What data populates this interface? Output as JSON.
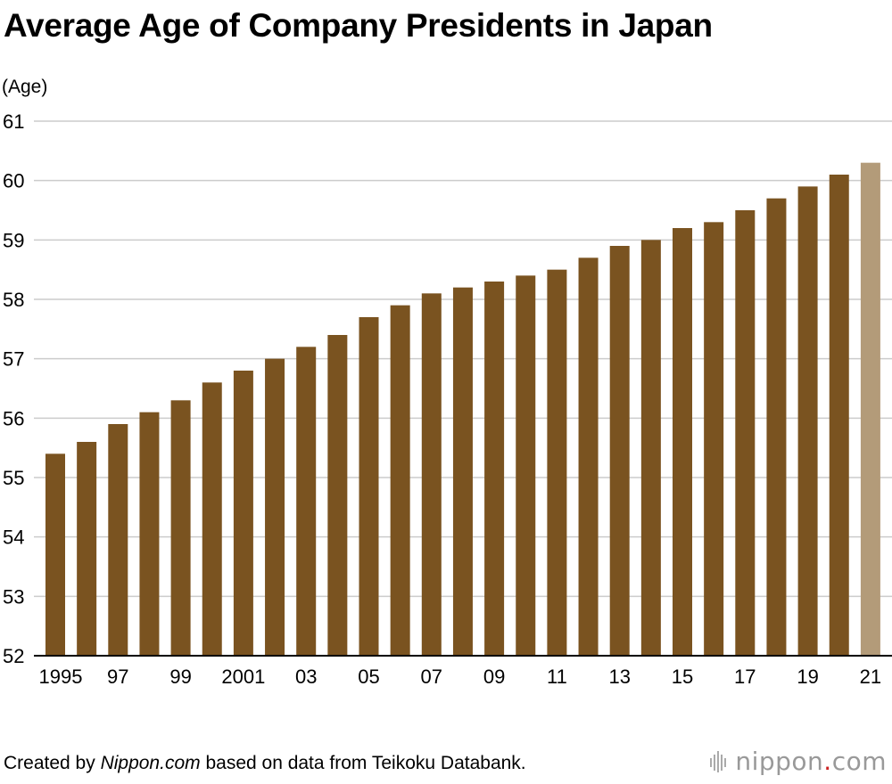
{
  "title": "Average Age of Company Presidents in Japan",
  "footer": {
    "prefix": "Created by ",
    "site": "Nippon.com",
    "suffix": " based on data from Teikoku Databank."
  },
  "logo": {
    "word1": "nippon",
    "dot": ".",
    "word2": "com",
    "icon": "bars-logo-icon"
  },
  "colors": {
    "bar": "#7a5320",
    "bar_highlight": "#b39b79",
    "grid": "#cccccc",
    "axis": "#000000"
  },
  "chart_data": {
    "type": "bar",
    "title": "Average Age of Company Presidents in Japan",
    "ylabel": "(Age)",
    "xlabel": "",
    "ylim": [
      52,
      61
    ],
    "yticks": [
      52,
      53,
      54,
      55,
      56,
      57,
      58,
      59,
      60,
      61
    ],
    "grid": true,
    "categories": [
      "1995",
      "1996",
      "1997",
      "1998",
      "1999",
      "2000",
      "2001",
      "2002",
      "2003",
      "2004",
      "2005",
      "2006",
      "2007",
      "2008",
      "2009",
      "2010",
      "2011",
      "2012",
      "2013",
      "2014",
      "2015",
      "2016",
      "2017",
      "2018",
      "2019",
      "2020",
      "2021"
    ],
    "tick_labels": [
      "1995",
      "",
      "97",
      "",
      "99",
      "",
      "2001",
      "",
      "03",
      "",
      "05",
      "",
      "07",
      "",
      "09",
      "",
      "11",
      "",
      "13",
      "",
      "15",
      "",
      "17",
      "",
      "19",
      "",
      "21"
    ],
    "values": [
      55.4,
      55.6,
      55.9,
      56.1,
      56.3,
      56.6,
      56.8,
      57.0,
      57.2,
      57.4,
      57.7,
      57.9,
      58.1,
      58.2,
      58.3,
      58.4,
      58.5,
      58.7,
      58.9,
      59.0,
      59.2,
      59.3,
      59.5,
      59.7,
      59.9,
      60.1,
      60.3
    ],
    "highlight": [
      "2021"
    ]
  }
}
